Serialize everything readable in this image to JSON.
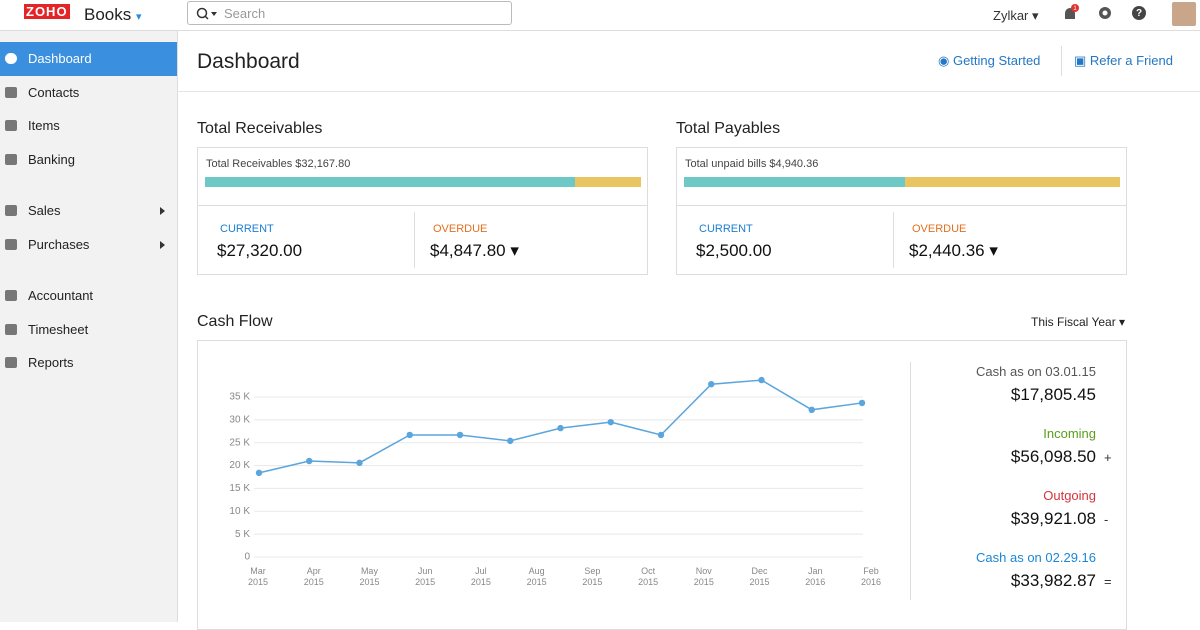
{
  "header": {
    "logo": "ZOHO",
    "brand": "Books",
    "search_placeholder": "Search",
    "organization": "Zylkar",
    "notifications": "1"
  },
  "sidebar": {
    "items": [
      "Dashboard",
      "Contacts",
      "Items",
      "Banking",
      "Sales",
      "Purchases",
      "Accountant",
      "Timesheet",
      "Reports"
    ]
  },
  "page": {
    "title": "Dashboard",
    "getting_started": "Getting Started",
    "refer": "Refer a Friend"
  },
  "receivables": {
    "title": "Total Receivables",
    "bar_label": "Total Receivables",
    "total": "$32,167.80",
    "current_label": "CURRENT",
    "current": {
      "value": 27320,
      "label": "$27,320.00"
    },
    "overdue_label": "OVERDUE",
    "overdue": {
      "value": 4847.8,
      "label": "$4,847.80"
    }
  },
  "payables": {
    "title": "Total Payables",
    "bar_label": "Total unpaid bills",
    "total": "$4,940.36",
    "current_label": "CURRENT",
    "current": {
      "value": 2500,
      "label": "$2,500.00"
    },
    "overdue_label": "OVERDUE",
    "overdue": {
      "value": 2440.36,
      "label": "$2,440.36"
    }
  },
  "cash_flow": {
    "title": "Cash Flow",
    "period": "This Fiscal Year",
    "summary": [
      {
        "label": "Cash as on 03.01.15",
        "amount": "$17,805.45"
      },
      {
        "label": "Incoming",
        "amount": "$56,098.50",
        "sign": "+"
      },
      {
        "label": "Outgoing",
        "amount": "$39,921.08",
        "sign": "-"
      },
      {
        "label": "Cash as on 02.29.16",
        "amount": "$33,982.87",
        "sign": "="
      }
    ]
  },
  "chart_data": {
    "type": "line",
    "color": "#5aa5dc",
    "x_labels": [
      "Mar 2015",
      "Apr 2015",
      "May 2015",
      "Jun 2015",
      "Jul 2015",
      "Aug 2015",
      "Sep 2015",
      "Oct 2015",
      "Nov 2015",
      "Dec 2015",
      "Jan 2016",
      "Feb 2016"
    ],
    "values": [
      18400,
      21000,
      20600,
      26700,
      26700,
      25400,
      28200,
      29500,
      26700,
      37800,
      38700,
      32200,
      33700
    ],
    "ylim": [
      0,
      40000
    ],
    "yticks": [
      0,
      {
        "value": 5000,
        "label": "5 K"
      },
      {
        "value": 10000,
        "label": "10 K"
      },
      {
        "value": 15000,
        "label": "15 K"
      },
      {
        "value": 20000,
        "label": "20 K"
      },
      {
        "value": 25000,
        "label": "25 K"
      },
      {
        "value": 30000,
        "label": "30 K"
      },
      {
        "value": 35000,
        "label": "35 K"
      }
    ],
    "grid": true
  }
}
